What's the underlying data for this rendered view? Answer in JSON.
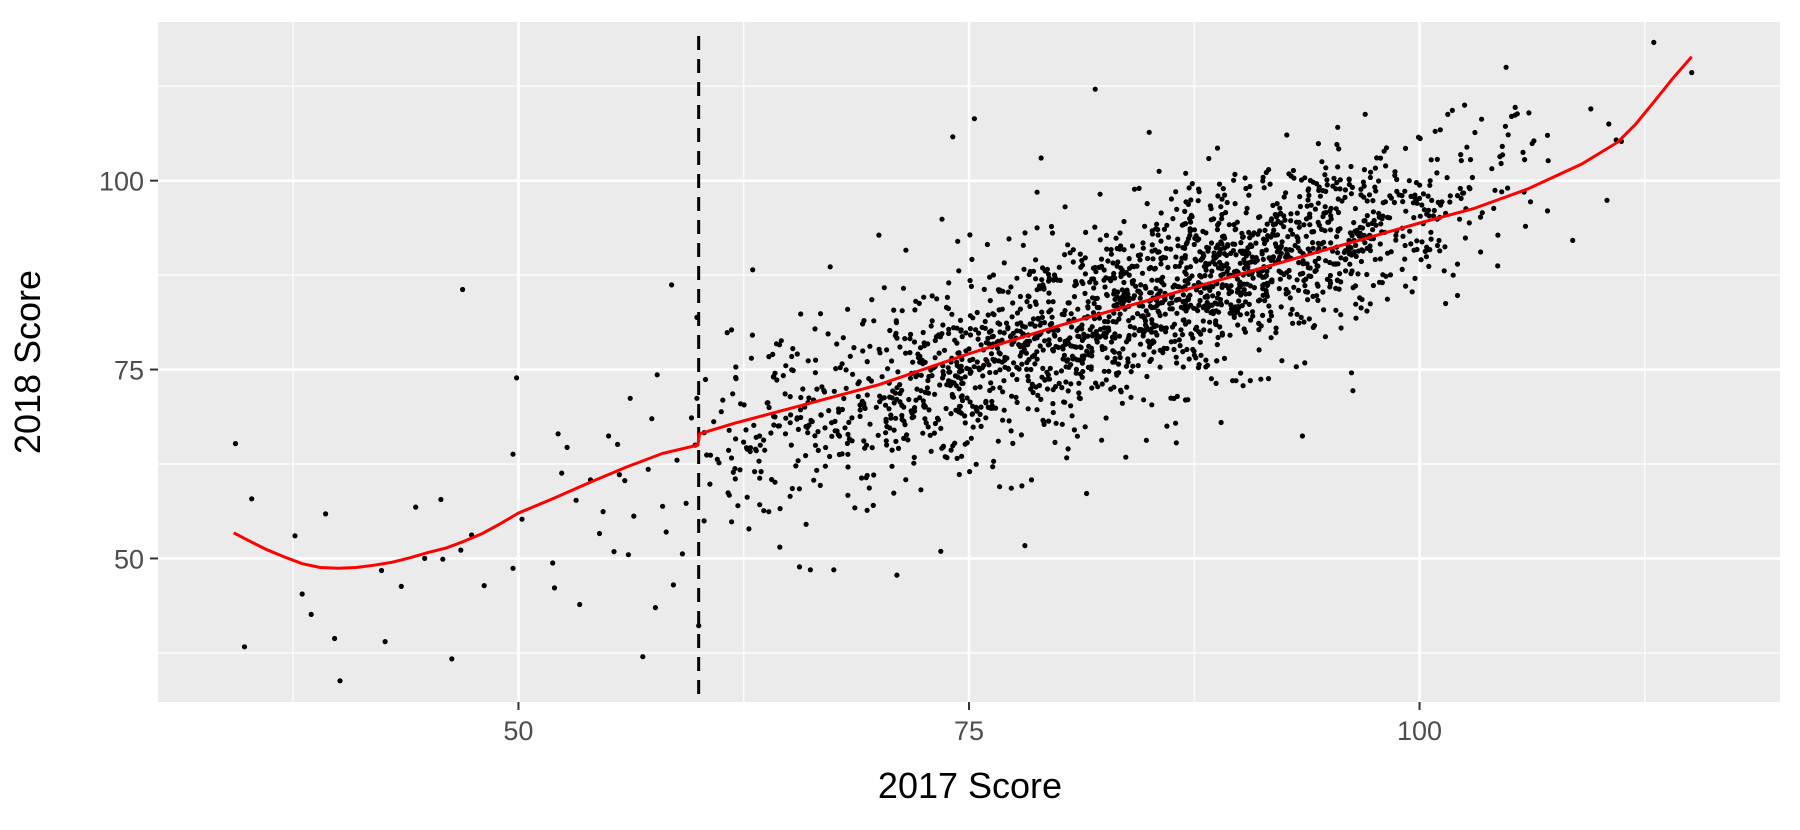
{
  "chart_data": {
    "type": "scatter",
    "xlabel": "2017 Score",
    "ylabel": "2018 Score",
    "xlim": [
      30,
      120
    ],
    "ylim": [
      31,
      121
    ],
    "x_ticks": [
      50,
      75,
      100
    ],
    "x_tick_labels": [
      "50",
      "75",
      "100"
    ],
    "y_ticks": [
      50,
      75,
      100
    ],
    "y_tick_labels": [
      "50",
      "75",
      "100"
    ],
    "grid": true,
    "legend": "none",
    "cutoff_line": {
      "x": 60,
      "style": "dashed",
      "color": "#000000"
    },
    "colors": {
      "panel": "#ebebeb",
      "grid": "#ffffff",
      "points": "#000000",
      "fit": "#ff0000"
    },
    "points_sparse": [
      [
        34.3,
        65.2
      ],
      [
        34.8,
        38.3
      ],
      [
        35.2,
        57.9
      ],
      [
        37.6,
        53
      ],
      [
        38,
        45.3
      ],
      [
        38.5,
        42.6
      ],
      [
        39.3,
        55.9
      ],
      [
        39.8,
        39.4
      ],
      [
        40.1,
        33.8
      ],
      [
        42.4,
        48.4
      ],
      [
        42.6,
        39
      ],
      [
        43.5,
        46.3
      ],
      [
        44.3,
        56.8
      ],
      [
        44.8,
        50
      ],
      [
        45.7,
        57.8
      ],
      [
        45.8,
        49.9
      ],
      [
        46.3,
        36.7
      ],
      [
        46.8,
        51.1
      ],
      [
        46.9,
        85.6
      ],
      [
        47.4,
        53.1
      ],
      [
        48.1,
        46.4
      ],
      [
        49.7,
        48.7
      ],
      [
        49.7,
        63.8
      ],
      [
        49.9,
        73.9
      ],
      [
        50.2,
        55.2
      ],
      [
        51.9,
        49.4
      ],
      [
        52,
        46.1
      ],
      [
        52.2,
        66.5
      ],
      [
        52.4,
        61.3
      ],
      [
        52.7,
        64.7
      ],
      [
        53.2,
        57.7
      ],
      [
        53.4,
        43.9
      ],
      [
        54,
        60.4
      ],
      [
        54.5,
        53.3
      ],
      [
        54.7,
        56.2
      ],
      [
        55,
        66.2
      ],
      [
        55.3,
        50.9
      ],
      [
        55.5,
        65.1
      ],
      [
        55.6,
        61.1
      ],
      [
        55.9,
        60.3
      ],
      [
        56.1,
        50.5
      ],
      [
        56.2,
        71.2
      ],
      [
        56.4,
        55.6
      ],
      [
        56.9,
        37
      ],
      [
        57.2,
        61.8
      ],
      [
        57.4,
        68.5
      ],
      [
        57.6,
        43.5
      ],
      [
        57.7,
        74.3
      ],
      [
        58,
        56.9
      ],
      [
        58.2,
        53.5
      ],
      [
        58.5,
        86.2
      ],
      [
        58.6,
        46.5
      ],
      [
        58.8,
        63
      ],
      [
        59.1,
        50.6
      ],
      [
        59.3,
        57.3
      ],
      [
        59.6,
        68.6
      ],
      [
        59.9,
        81.9
      ],
      [
        60,
        41.1
      ],
      [
        59.8,
        65
      ],
      [
        59.9,
        71.2
      ]
    ],
    "points_dense_clusters": [
      {
        "x": 65,
        "y": 68.5,
        "sx": 2.7,
        "sy": 6.5,
        "n": 150
      },
      {
        "x": 72,
        "y": 72.5,
        "sx": 3.0,
        "sy": 6.5,
        "n": 280
      },
      {
        "x": 78,
        "y": 78,
        "sx": 3.0,
        "sy": 6.3,
        "n": 360
      },
      {
        "x": 84,
        "y": 83,
        "sx": 3.0,
        "sy": 6.0,
        "n": 460
      },
      {
        "x": 90,
        "y": 88,
        "sx": 3.0,
        "sy": 5.8,
        "n": 480
      },
      {
        "x": 96,
        "y": 93,
        "sx": 3.0,
        "sy": 5.5,
        "n": 300
      },
      {
        "x": 102,
        "y": 97,
        "sx": 2.5,
        "sy": 5.0,
        "n": 90
      }
    ],
    "points_outliers": [
      [
        63,
        88.2
      ],
      [
        64.5,
        51.5
      ],
      [
        66.2,
        48.5
      ],
      [
        67.5,
        48.5
      ],
      [
        67.3,
        88.6
      ],
      [
        70,
        92.8
      ],
      [
        71.5,
        90.8
      ],
      [
        71,
        47.8
      ],
      [
        73.5,
        94.9
      ],
      [
        74.1,
        105.8
      ],
      [
        75.3,
        108.2
      ],
      [
        76.7,
        59.5
      ],
      [
        78.1,
        51.7
      ],
      [
        79,
        103
      ],
      [
        82,
        112.1
      ],
      [
        80.5,
        64.5
      ],
      [
        83.7,
        63.4
      ],
      [
        85,
        106.4
      ],
      [
        86.5,
        65.3
      ],
      [
        93.5,
        66.2
      ],
      [
        96.3,
        72.2
      ],
      [
        102.5,
        110
      ],
      [
        104.8,
        115
      ],
      [
        105.1,
        108.5
      ],
      [
        107.1,
        106
      ],
      [
        107.1,
        96
      ],
      [
        108.5,
        92.1
      ],
      [
        109.5,
        109.5
      ],
      [
        110.4,
        97.4
      ],
      [
        110.5,
        107.5
      ],
      [
        111.2,
        105.2
      ],
      [
        113,
        118.3
      ],
      [
        115.1,
        114.3
      ]
    ],
    "fit_line": {
      "name": "fit",
      "x": [
        34.2,
        35,
        36,
        37,
        38,
        39,
        40,
        41,
        42,
        43,
        44,
        45,
        46,
        47,
        48,
        49,
        50,
        52,
        54,
        56,
        58,
        59.95,
        60.05,
        62,
        65,
        70,
        75,
        80,
        85,
        90,
        95,
        100,
        103,
        106,
        109,
        111,
        112,
        113,
        114,
        115.1
      ],
      "y": [
        53.4,
        52.4,
        51.2,
        50.2,
        49.3,
        48.8,
        48.7,
        48.8,
        49.1,
        49.5,
        50.1,
        50.8,
        51.4,
        52.3,
        53.3,
        54.6,
        56,
        58,
        60.1,
        62.1,
        63.9,
        65,
        66.5,
        67.9,
        69.8,
        73,
        77.1,
        80.8,
        84.2,
        87.6,
        91,
        94.4,
        96.3,
        98.9,
        102.2,
        105.1,
        107.5,
        110.4,
        113.4,
        116.4
      ]
    }
  }
}
